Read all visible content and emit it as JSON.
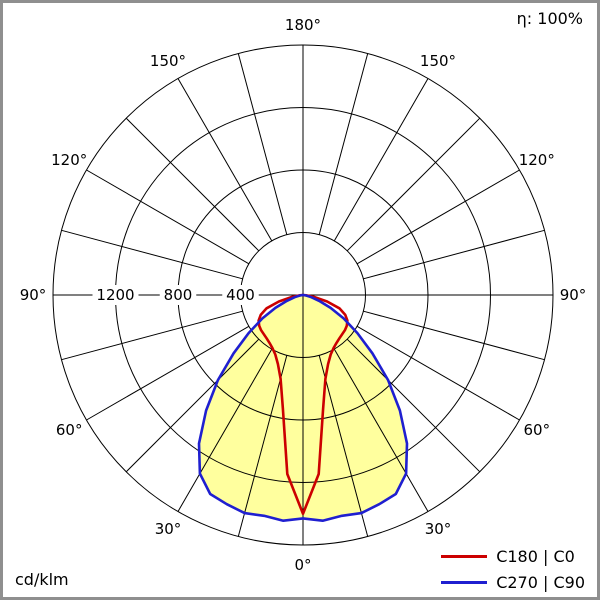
{
  "chart_data": {
    "type": "polar_intensity_distribution",
    "efficiency_label": "η: 100%",
    "units_label": "cd/klm",
    "scale_max": 1600,
    "radial_ticks": [
      400,
      800,
      1200
    ],
    "grid_circles": [
      400,
      800,
      1200,
      1600
    ],
    "spoke_step_deg": 15,
    "angle_labels_deg": [
      0,
      30,
      60,
      90,
      120,
      150,
      180
    ],
    "symmetry": "mirrored about vertical 0-180 axis, 0 deg at bottom",
    "legend_position": "bottom-right",
    "geometry": {
      "cx": 300,
      "cy": 292,
      "outer_radius_px": 250,
      "label_radius_px": 270
    },
    "series": [
      {
        "name": "C180 | C0",
        "color": "#cc0000",
        "fill": "none",
        "gamma_deg": [
          0,
          5,
          10,
          15,
          20,
          25,
          30,
          35,
          40,
          45,
          50,
          55,
          60,
          65,
          70,
          75,
          80,
          85,
          90
        ],
        "values": [
          1400,
          1150,
          740,
          555,
          470,
          420,
          392,
          374,
          362,
          355,
          350,
          342,
          328,
          298,
          248,
          160,
          70,
          20,
          0
        ]
      },
      {
        "name": "C270 | C90",
        "color": "#1f1fd0",
        "fill": "#ffff9e",
        "gamma_deg": [
          0,
          5,
          10,
          15,
          20,
          25,
          30,
          35,
          40,
          45,
          50,
          55,
          60,
          65,
          70,
          75,
          80,
          85,
          90
        ],
        "values": [
          1430,
          1450,
          1435,
          1445,
          1425,
          1405,
          1320,
          1160,
          965,
          770,
          580,
          425,
          300,
          195,
          110,
          55,
          20,
          5,
          0
        ]
      }
    ]
  }
}
